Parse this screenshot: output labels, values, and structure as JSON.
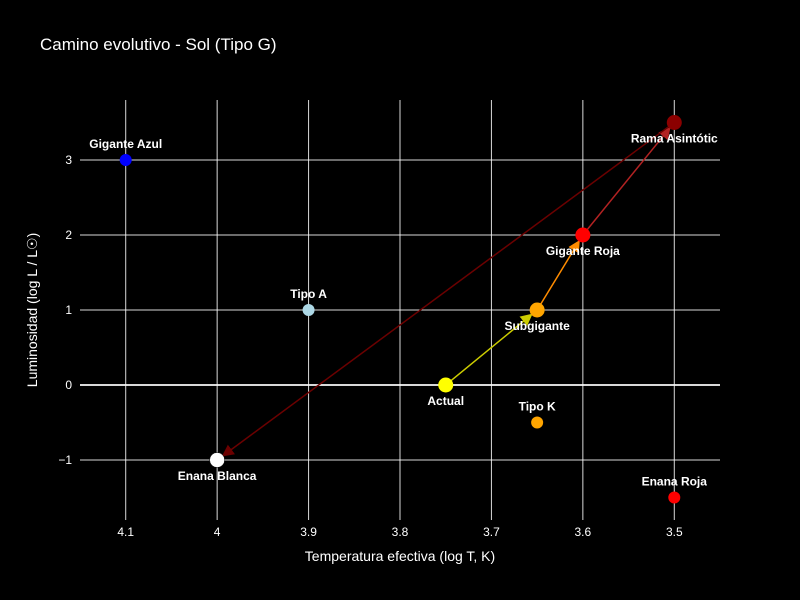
{
  "chart_data": {
    "type": "scatter",
    "title": "Camino evolutivo - Sol (Tipo G)",
    "xlabel": "Temperatura efectiva (log T, K)",
    "ylabel": "Luminosidad (log L / L☉)",
    "xlim": [
      4.15,
      3.45
    ],
    "ylim": [
      -1.8,
      3.8
    ],
    "x_ticks": [
      4.1,
      4.0,
      3.9,
      3.8,
      3.7,
      3.6,
      3.5
    ],
    "x_tick_labels": [
      "4.1",
      "4",
      "3.9",
      "3.8",
      "3.7",
      "3.6",
      "3.5"
    ],
    "y_ticks": [
      -1,
      0,
      1,
      2,
      3
    ],
    "y_tick_labels": [
      "−1",
      "0",
      "1",
      "2",
      "3"
    ],
    "grid": true,
    "colors": {
      "background": "#000000",
      "grid": "#ffffff"
    },
    "points": [
      {
        "label": "Gigante Azul",
        "x": 4.1,
        "y": 3.0,
        "color": "#0000ff",
        "label_pos": "above"
      },
      {
        "label": "Tipo A",
        "x": 3.9,
        "y": 1.0,
        "color": "#add8e6",
        "label_pos": "above"
      },
      {
        "label": "Tipo K",
        "x": 3.65,
        "y": -0.5,
        "color": "#ffa500",
        "label_pos": "above"
      },
      {
        "label": "Enana Roja",
        "x": 3.5,
        "y": -1.5,
        "color": "#ff0000",
        "label_pos": "above"
      }
    ],
    "path": [
      {
        "label": "Actual",
        "x": 3.75,
        "y": 0.0,
        "color": "#ffff00",
        "label_pos": "below"
      },
      {
        "label": "Subgigante",
        "x": 3.65,
        "y": 1.0,
        "color": "#ffa500",
        "label_pos": "below"
      },
      {
        "label": "Gigante Roja",
        "x": 3.6,
        "y": 2.0,
        "color": "#ff0000",
        "label_pos": "below"
      },
      {
        "label": "Rama Asintótic",
        "x": 3.5,
        "y": 3.5,
        "color": "#8b0000",
        "label_pos": "below"
      },
      {
        "label": "Enana Blanca",
        "x": 4.0,
        "y": -1.0,
        "color": "#ffffff",
        "label_pos": "below"
      }
    ],
    "arrow_colors": [
      "#cccc00",
      "#ff8c00",
      "#b22222",
      "#6b0000"
    ]
  }
}
